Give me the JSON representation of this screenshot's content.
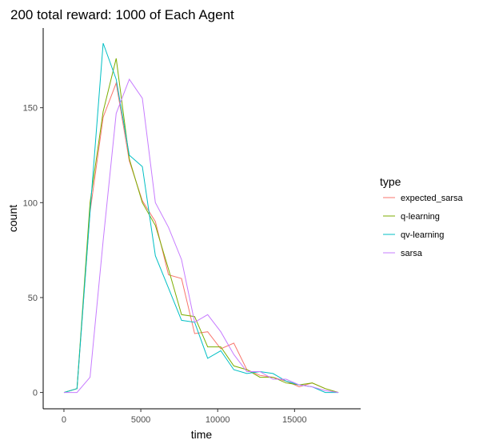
{
  "chart_data": {
    "type": "line",
    "title": "200 total reward: 1000 of Each Agent",
    "xlabel": "time",
    "ylabel": "count",
    "xlim": [
      -1350,
      19300
    ],
    "ylim": [
      -8.6,
      192
    ],
    "x_ticks": [
      0,
      5000,
      10000,
      15000
    ],
    "x_tick_labels": [
      "0",
      "5000",
      "10000",
      "15000"
    ],
    "y_ticks": [
      0,
      50,
      100,
      150
    ],
    "y_tick_labels": [
      "0",
      "50",
      "100",
      "150"
    ],
    "grid": false,
    "legend": {
      "title": "type",
      "position": "right"
    },
    "series": [
      {
        "name": "expected_sarsa",
        "color": "#F8766D",
        "x": [
          0,
          850,
          1700,
          2550,
          3400,
          4250,
          5100,
          5950,
          6800,
          7650,
          8500,
          9350,
          10200,
          11050,
          11900,
          12750,
          13600,
          14450,
          15300,
          16150,
          17000,
          17850
        ],
        "y": [
          0,
          2,
          95,
          145,
          163,
          122,
          101,
          90,
          62,
          60,
          31,
          32,
          23,
          26,
          12,
          9,
          8,
          6,
          3,
          5,
          2,
          0
        ]
      },
      {
        "name": "q-learning",
        "color": "#7CAE00",
        "x": [
          0,
          850,
          1700,
          2550,
          3400,
          4250,
          5100,
          5950,
          6800,
          7650,
          8500,
          9350,
          10200,
          11050,
          11900,
          12750,
          13600,
          14450,
          15300,
          16150,
          17000,
          17850
        ],
        "y": [
          0,
          2,
          100,
          148,
          176,
          123,
          100,
          88,
          65,
          41,
          40,
          24,
          24,
          14,
          12,
          8,
          8,
          5,
          4,
          5,
          2,
          0
        ]
      },
      {
        "name": "qv-learning",
        "color": "#00BFC4",
        "x": [
          0,
          850,
          1700,
          2550,
          3400,
          4250,
          5100,
          5950,
          6800,
          7650,
          8500,
          9350,
          10200,
          11050,
          11900,
          12750,
          13600,
          14450,
          15300,
          16150,
          17000,
          17850
        ],
        "y": [
          0,
          2,
          95,
          184,
          165,
          125,
          119,
          72,
          55,
          38,
          37,
          18,
          22,
          12,
          10,
          11,
          10,
          6,
          4,
          3,
          0,
          0
        ]
      },
      {
        "name": "sarsa",
        "color": "#C77CFF",
        "x": [
          0,
          850,
          1700,
          2550,
          3400,
          4250,
          5100,
          5950,
          6800,
          7650,
          8500,
          9350,
          10200,
          11050,
          11900,
          12750,
          13600,
          14450,
          15300,
          16150,
          17000,
          17850
        ],
        "y": [
          0,
          0,
          8,
          80,
          147,
          165,
          155,
          100,
          87,
          70,
          37,
          41,
          32,
          20,
          11,
          11,
          7,
          7,
          4,
          3,
          1,
          0
        ]
      }
    ]
  }
}
